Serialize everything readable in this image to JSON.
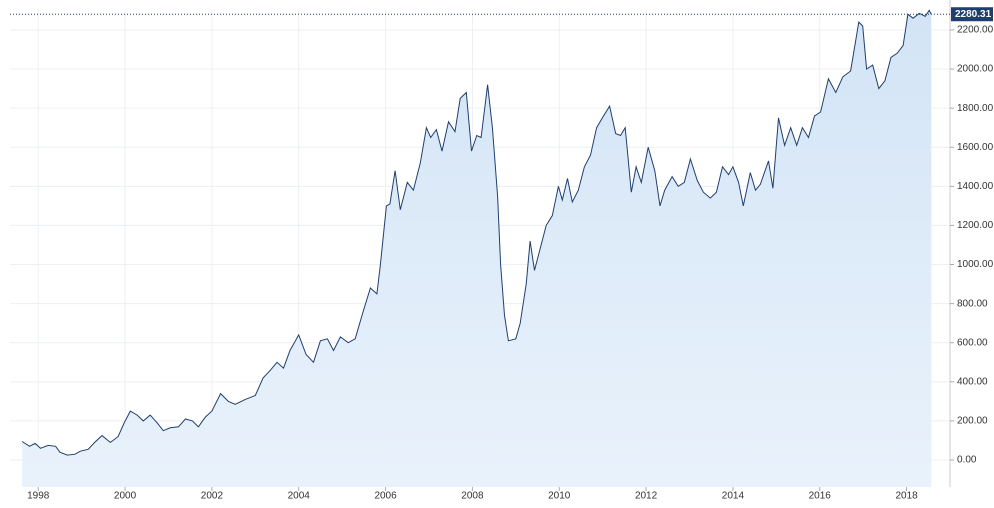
{
  "chart_data": {
    "type": "area",
    "x": [
      1997.63,
      1997.8,
      1997.93,
      1998.05,
      1998.23,
      1998.4,
      1998.5,
      1998.67,
      1998.85,
      1998.97,
      1999.15,
      1999.3,
      1999.47,
      1999.66,
      1999.84,
      1999.98,
      2000.12,
      2000.28,
      2000.42,
      2000.58,
      2000.74,
      2000.88,
      2001.04,
      2001.23,
      2001.39,
      2001.55,
      2001.69,
      2001.85,
      2002.0,
      2002.2,
      2002.38,
      2002.54,
      2002.77,
      2003.0,
      2003.18,
      2003.35,
      2003.5,
      2003.65,
      2003.8,
      2004.0,
      2004.17,
      2004.34,
      2004.5,
      2004.66,
      2004.8,
      2004.96,
      2005.14,
      2005.3,
      2005.47,
      2005.65,
      2005.8,
      2005.88,
      2006.02,
      2006.1,
      2006.22,
      2006.34,
      2006.5,
      2006.64,
      2006.8,
      2006.94,
      2007.04,
      2007.17,
      2007.3,
      2007.45,
      2007.6,
      2007.72,
      2007.86,
      2007.98,
      2008.1,
      2008.2,
      2008.35,
      2008.46,
      2008.58,
      2008.65,
      2008.74,
      2008.83,
      2009.0,
      2009.1,
      2009.24,
      2009.33,
      2009.43,
      2009.56,
      2009.7,
      2009.84,
      2009.98,
      2010.07,
      2010.19,
      2010.3,
      2010.44,
      2010.58,
      2010.72,
      2010.86,
      2011.02,
      2011.16,
      2011.3,
      2011.41,
      2011.52,
      2011.66,
      2011.77,
      2011.89,
      2012.05,
      2012.2,
      2012.32,
      2012.43,
      2012.6,
      2012.74,
      2012.88,
      2013.02,
      2013.18,
      2013.32,
      2013.48,
      2013.62,
      2013.76,
      2013.9,
      2014.0,
      2014.13,
      2014.24,
      2014.4,
      2014.52,
      2014.63,
      2014.82,
      2014.92,
      2015.05,
      2015.19,
      2015.33,
      2015.47,
      2015.6,
      2015.74,
      2015.88,
      2016.02,
      2016.2,
      2016.37,
      2016.53,
      2016.71,
      2016.9,
      2016.99,
      2017.08,
      2017.22,
      2017.36,
      2017.5,
      2017.64,
      2017.78,
      2017.92,
      2018.03,
      2018.15,
      2018.29,
      2018.43,
      2018.52,
      2018.57
    ],
    "values": [
      95,
      70,
      85,
      60,
      75,
      70,
      40,
      25,
      30,
      45,
      55,
      90,
      125,
      90,
      120,
      190,
      250,
      230,
      200,
      230,
      190,
      150,
      165,
      170,
      210,
      200,
      170,
      220,
      250,
      340,
      300,
      285,
      310,
      330,
      420,
      460,
      500,
      470,
      560,
      640,
      540,
      500,
      610,
      620,
      560,
      630,
      600,
      620,
      750,
      880,
      850,
      1000,
      1300,
      1310,
      1480,
      1280,
      1420,
      1380,
      1520,
      1700,
      1650,
      1690,
      1580,
      1730,
      1680,
      1850,
      1880,
      1580,
      1660,
      1650,
      1920,
      1700,
      1350,
      1000,
      740,
      610,
      620,
      700,
      900,
      1120,
      970,
      1080,
      1200,
      1250,
      1400,
      1330,
      1440,
      1320,
      1380,
      1500,
      1560,
      1700,
      1760,
      1810,
      1670,
      1660,
      1700,
      1370,
      1500,
      1420,
      1600,
      1480,
      1300,
      1380,
      1450,
      1400,
      1420,
      1540,
      1430,
      1370,
      1340,
      1370,
      1500,
      1460,
      1500,
      1420,
      1300,
      1470,
      1380,
      1410,
      1530,
      1390,
      1750,
      1610,
      1700,
      1610,
      1700,
      1650,
      1760,
      1780,
      1950,
      1880,
      1960,
      1990,
      2240,
      2220,
      2000,
      2020,
      1900,
      1940,
      2060,
      2080,
      2120,
      2280,
      2260,
      2285,
      2270,
      2300,
      2280.31
    ],
    "last_value": 2280.31,
    "color": "#1f3f6e",
    "fill": "#dce9f8",
    "xlim": [
      1997.35,
      2019.0
    ],
    "xticks": [
      1998,
      2000,
      2002,
      2004,
      2006,
      2008,
      2010,
      2012,
      2014,
      2016,
      2018
    ],
    "ylim": [
      -138,
      2302
    ],
    "yticks": [
      {
        "value": 0,
        "label": "0.00"
      },
      {
        "value": 200,
        "label": "200.00"
      },
      {
        "value": 400,
        "label": "400.00"
      },
      {
        "value": 600,
        "label": "600.00"
      },
      {
        "value": 800,
        "label": "800.00"
      },
      {
        "value": 1000,
        "label": "1000.00"
      },
      {
        "value": 1200,
        "label": "1200.00"
      },
      {
        "value": 1400,
        "label": "1400.00"
      },
      {
        "value": 1600,
        "label": "1600.00"
      },
      {
        "value": 1800,
        "label": "1800.00"
      },
      {
        "value": 2000,
        "label": "2000.00"
      },
      {
        "value": 2200,
        "label": "2200.00"
      }
    ],
    "grid": true
  }
}
